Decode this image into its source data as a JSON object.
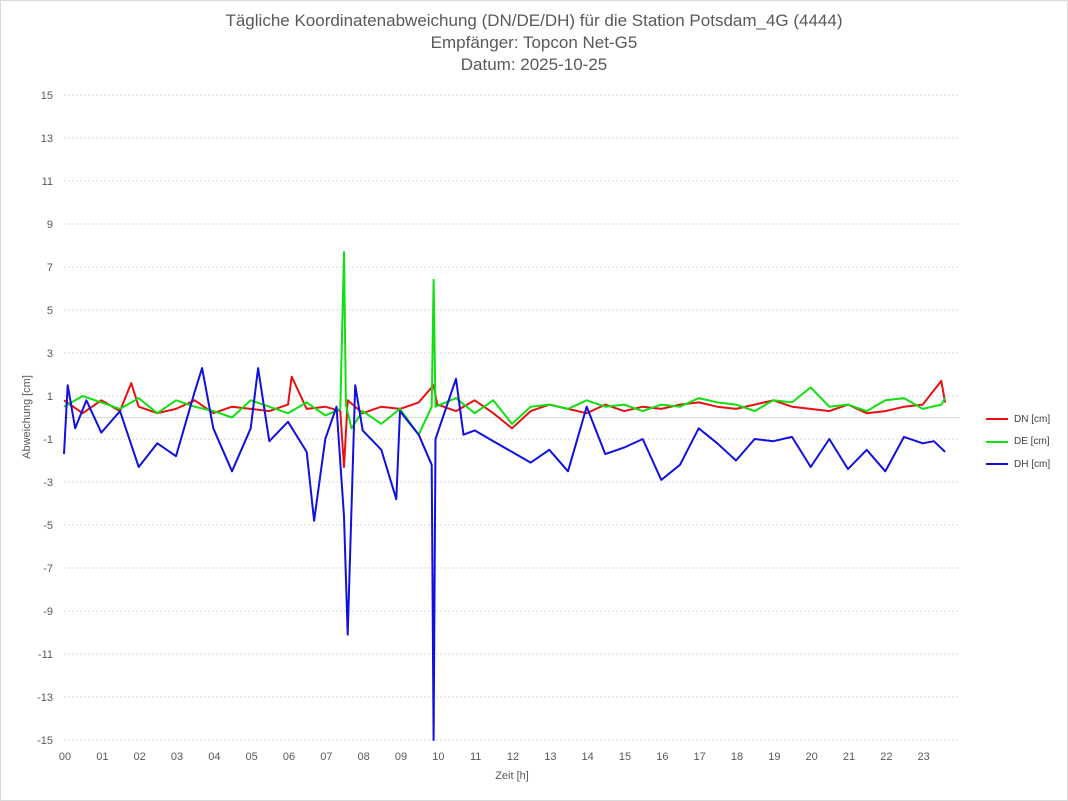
{
  "chart_data": {
    "type": "line",
    "title": "Tägliche Koordinatenabweichung (DN/DE/DH) für die Station Potsdam_4G (4444)",
    "subtitle_1": "Empfänger: Topcon Net-G5",
    "subtitle_2": "Datum: 2025-10-25",
    "xlabel": "Zeit [h]",
    "ylabel": "Abweichung [cm]",
    "xlim": [
      0,
      24
    ],
    "ylim": [
      -15,
      15
    ],
    "x_ticks": [
      "00",
      "01",
      "02",
      "03",
      "04",
      "05",
      "06",
      "07",
      "08",
      "09",
      "10",
      "11",
      "12",
      "13",
      "14",
      "15",
      "16",
      "17",
      "18",
      "19",
      "20",
      "21",
      "22",
      "23"
    ],
    "y_ticks": [
      15,
      13,
      11,
      9,
      7,
      5,
      3,
      1,
      -1,
      -3,
      -5,
      -7,
      -9,
      -11,
      -13,
      -15
    ],
    "grid": "horizontal-dotted",
    "legend_position": "right",
    "series": [
      {
        "name": "DN [cm]",
        "color": "#e81010",
        "x": [
          0.0,
          0.5,
          1.0,
          1.5,
          1.8,
          2.0,
          2.5,
          3.0,
          3.5,
          4.0,
          4.5,
          5.0,
          5.5,
          6.0,
          6.1,
          6.5,
          7.0,
          7.4,
          7.5,
          7.6,
          8.0,
          8.5,
          9.0,
          9.5,
          9.9,
          10.0,
          10.5,
          11.0,
          11.5,
          12.0,
          12.5,
          13.0,
          13.5,
          14.0,
          14.5,
          15.0,
          15.5,
          16.0,
          16.5,
          17.0,
          17.5,
          18.0,
          18.5,
          19.0,
          19.5,
          20.0,
          20.5,
          21.0,
          21.5,
          22.0,
          22.5,
          23.0,
          23.5,
          23.6
        ],
        "values": [
          0.8,
          0.2,
          0.8,
          0.3,
          1.6,
          0.5,
          0.2,
          0.4,
          0.8,
          0.2,
          0.5,
          0.4,
          0.3,
          0.6,
          1.9,
          0.4,
          0.5,
          0.3,
          -2.3,
          0.8,
          0.2,
          0.5,
          0.4,
          0.7,
          1.5,
          0.6,
          0.3,
          0.8,
          0.2,
          -0.5,
          0.3,
          0.6,
          0.4,
          0.2,
          0.6,
          0.3,
          0.5,
          0.4,
          0.6,
          0.7,
          0.5,
          0.4,
          0.6,
          0.8,
          0.5,
          0.4,
          0.3,
          0.6,
          0.2,
          0.3,
          0.5,
          0.6,
          1.7,
          0.7
        ]
      },
      {
        "name": "DE [cm]",
        "color": "#10e010",
        "x": [
          0.0,
          0.5,
          1.0,
          1.5,
          2.0,
          2.5,
          3.0,
          3.5,
          4.0,
          4.5,
          5.0,
          5.5,
          6.0,
          6.5,
          7.0,
          7.4,
          7.5,
          7.55,
          7.7,
          8.0,
          8.5,
          9.0,
          9.5,
          9.85,
          9.9,
          9.95,
          10.5,
          11.0,
          11.5,
          12.0,
          12.5,
          13.0,
          13.5,
          14.0,
          14.5,
          15.0,
          15.5,
          16.0,
          16.5,
          17.0,
          17.5,
          18.0,
          18.5,
          19.0,
          19.5,
          20.0,
          20.5,
          21.0,
          21.5,
          22.0,
          22.5,
          23.0,
          23.5,
          23.6
        ],
        "values": [
          0.5,
          1.0,
          0.7,
          0.4,
          0.9,
          0.2,
          0.8,
          0.5,
          0.3,
          0.0,
          0.8,
          0.5,
          0.2,
          0.7,
          0.1,
          0.4,
          7.7,
          0.6,
          -0.5,
          0.3,
          -0.3,
          0.4,
          -0.8,
          0.5,
          6.4,
          0.5,
          0.9,
          0.2,
          0.8,
          -0.3,
          0.5,
          0.6,
          0.4,
          0.8,
          0.5,
          0.6,
          0.3,
          0.6,
          0.5,
          0.9,
          0.7,
          0.6,
          0.3,
          0.8,
          0.7,
          1.4,
          0.5,
          0.6,
          0.3,
          0.8,
          0.9,
          0.4,
          0.6,
          0.9
        ]
      },
      {
        "name": "DH [cm]",
        "color": "#1010e0",
        "x": [
          0.0,
          0.1,
          0.3,
          0.6,
          1.0,
          1.5,
          2.0,
          2.5,
          3.0,
          3.5,
          3.7,
          4.0,
          4.5,
          5.0,
          5.2,
          5.5,
          6.0,
          6.5,
          6.7,
          7.0,
          7.3,
          7.5,
          7.6,
          7.8,
          8.0,
          8.5,
          8.9,
          9.0,
          9.5,
          9.85,
          9.9,
          9.95,
          10.5,
          10.7,
          11.0,
          11.5,
          12.0,
          12.5,
          13.0,
          13.5,
          14.0,
          14.5,
          15.0,
          15.5,
          16.0,
          16.5,
          17.0,
          17.5,
          18.0,
          18.5,
          19.0,
          19.5,
          20.0,
          20.5,
          21.0,
          21.5,
          22.0,
          22.5,
          23.0,
          23.3,
          23.6
        ],
        "values": [
          -1.7,
          1.5,
          -0.5,
          0.8,
          -0.7,
          0.3,
          -2.3,
          -1.2,
          -1.8,
          1.2,
          2.3,
          -0.5,
          -2.5,
          -0.5,
          2.3,
          -1.1,
          -0.2,
          -1.6,
          -4.8,
          -1.0,
          0.5,
          -4.6,
          -10.1,
          1.5,
          -0.6,
          -1.5,
          -3.8,
          0.3,
          -0.8,
          -2.2,
          -15.0,
          -1.0,
          1.8,
          -0.8,
          -0.6,
          -1.1,
          -1.6,
          -2.1,
          -1.5,
          -2.5,
          0.5,
          -1.7,
          -1.4,
          -1.0,
          -2.9,
          -2.2,
          -0.5,
          -1.2,
          -2.0,
          -1.0,
          -1.1,
          -0.9,
          -2.3,
          -1.0,
          -2.4,
          -1.5,
          -2.5,
          -0.9,
          -1.2,
          -1.1,
          -1.6
        ]
      }
    ]
  }
}
